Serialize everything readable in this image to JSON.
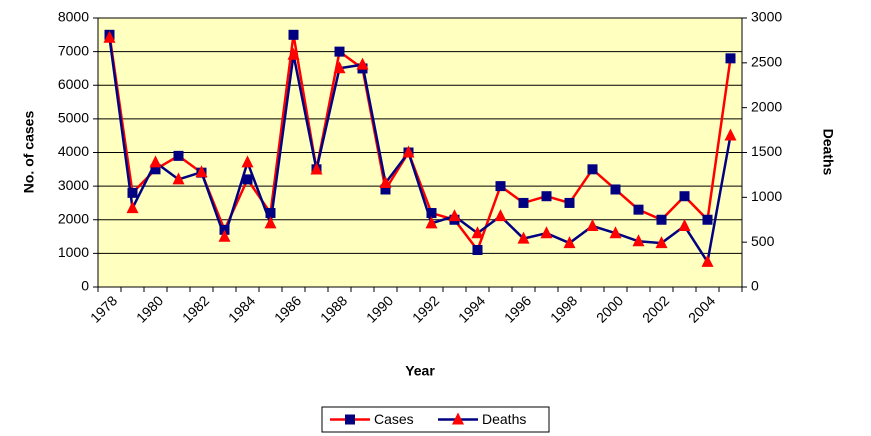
{
  "chart_data": {
    "type": "line",
    "x_label": "Year",
    "y_label": "No. of cases",
    "y2_label": "Deaths",
    "categories": [
      "1978",
      null,
      "1980",
      null,
      "1982",
      null,
      "1984",
      null,
      "1986",
      null,
      "1988",
      null,
      "1990",
      null,
      "1992",
      null,
      "1994",
      null,
      "1996",
      null,
      "1998",
      null,
      "2000",
      null,
      "2002",
      null,
      "2004",
      null
    ],
    "series": [
      {
        "name": "Cases",
        "line_color": "#ff0000",
        "marker_color": "#000080",
        "marker": "square",
        "values": [
          7500,
          2800,
          3500,
          3900,
          3400,
          1700,
          3200,
          2200,
          7500,
          3500,
          7000,
          6500,
          2900,
          4000,
          2200,
          2000,
          1100,
          3000,
          2500,
          2700,
          2500,
          3500,
          2900,
          2300,
          2000,
          2700,
          2000,
          6800
        ]
      },
      {
        "name": "Deaths",
        "axis": "y2",
        "line_color": "#000080",
        "marker_color": "#ff0000",
        "marker": "triangle",
        "values": [
          2780,
          880,
          1390,
          1200,
          1280,
          560,
          1390,
          710,
          2590,
          1310,
          2440,
          2480,
          1160,
          1500,
          710,
          790,
          600,
          790,
          540,
          600,
          490,
          680,
          600,
          510,
          490,
          680,
          280,
          1690
        ]
      }
    ],
    "ylim": [
      0,
      8000
    ],
    "yticks": [
      0,
      1000,
      2000,
      3000,
      4000,
      5000,
      6000,
      7000,
      8000
    ],
    "y2lim": [
      0,
      3000
    ],
    "y2ticks": [
      0,
      500,
      1000,
      1500,
      2000,
      2500,
      3000
    ],
    "grid": true,
    "legend": "bottom",
    "plot_background": "#ffffc0"
  }
}
